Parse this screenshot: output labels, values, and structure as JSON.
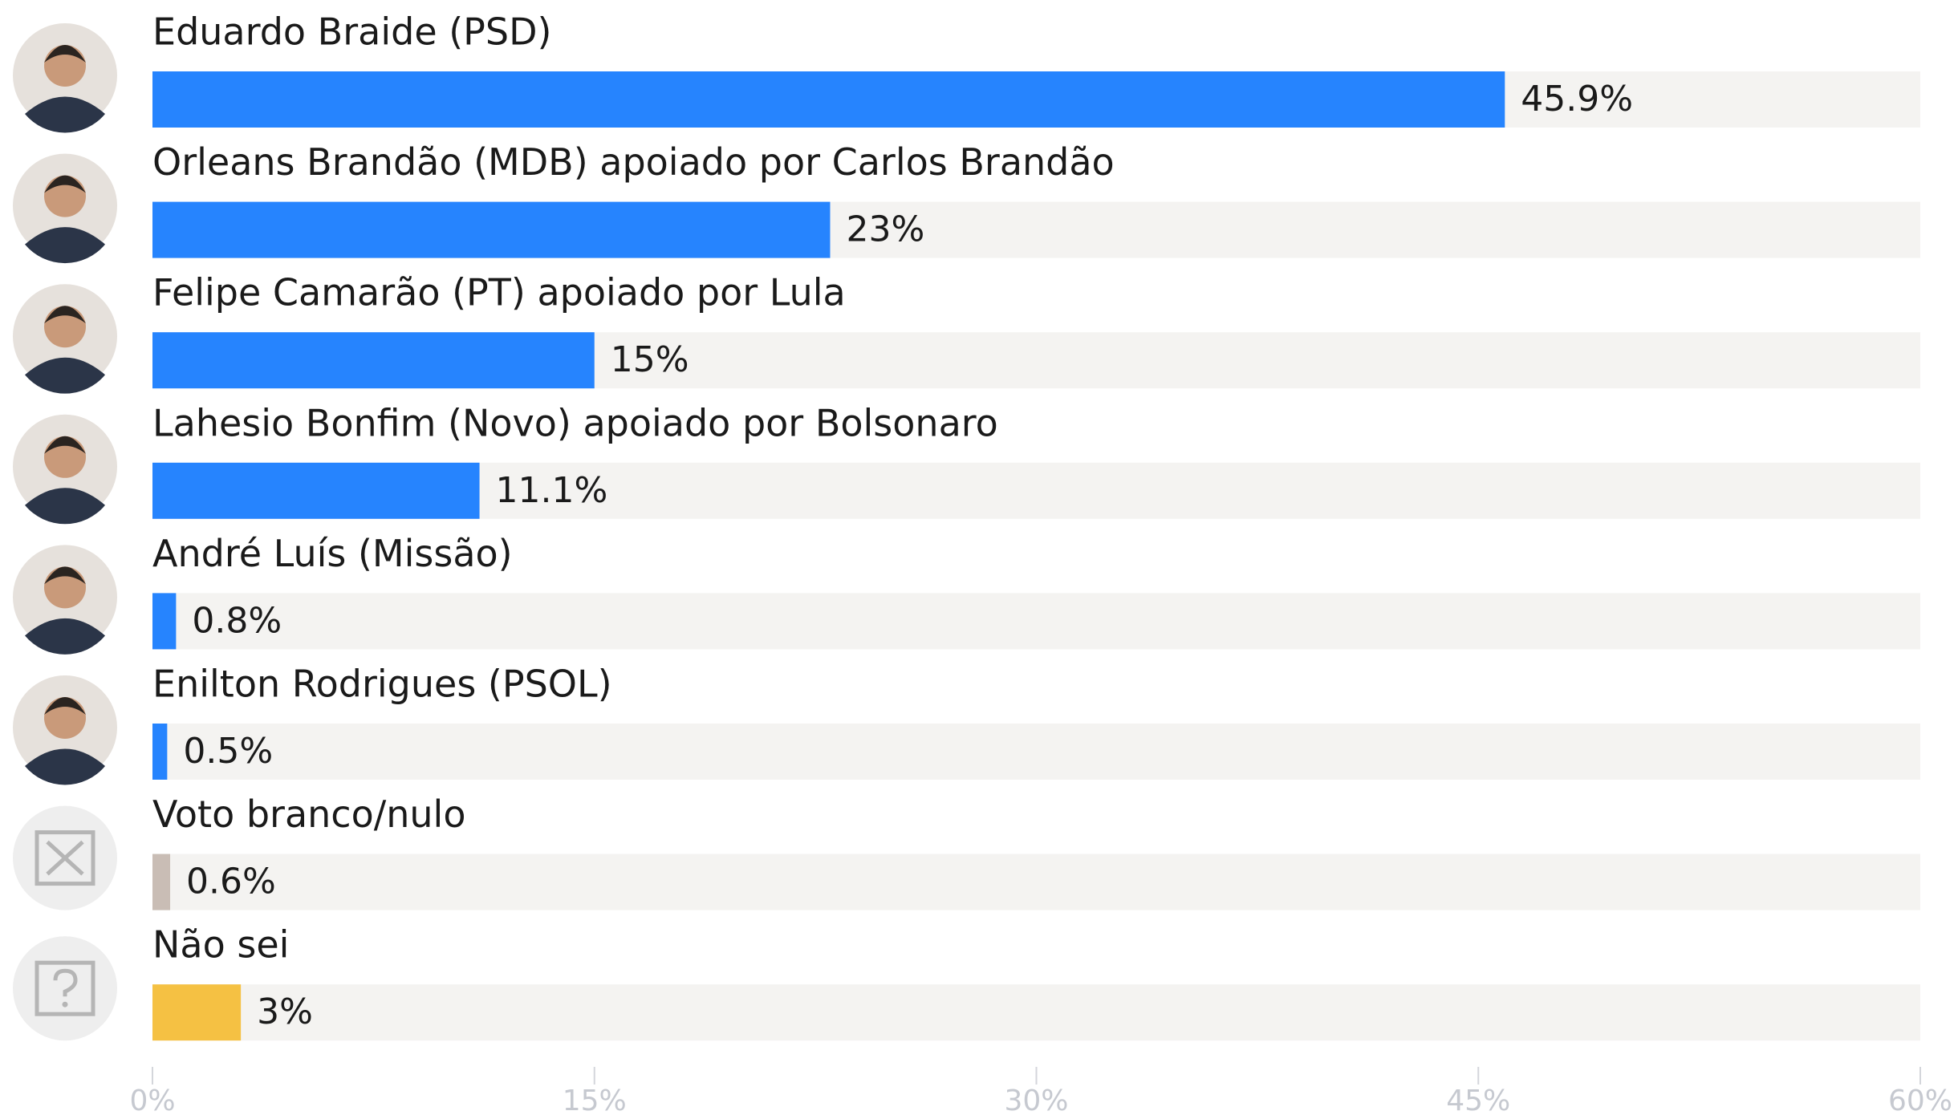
{
  "chart_data": {
    "type": "hbar",
    "categories": [
      "Eduardo Braide (PSD)",
      "Orleans Brandão (MDB) apoiado por Carlos Brandão",
      "Felipe Camarão (PT) apoiado por Lula",
      "Lahesio Bonfim (Novo) apoiado por Bolsonaro",
      "André Luís (Missão)",
      "Enilton Rodrigues (PSOL)",
      "Voto branco/nulo",
      "Não sei"
    ],
    "values": [
      45.9,
      23,
      15,
      11.1,
      0.8,
      0.5,
      0.6,
      3
    ],
    "value_labels": [
      "45.9%",
      "23%",
      "15%",
      "11.1%",
      "0.8%",
      "0.5%",
      "0.6%",
      "3%"
    ],
    "colors": [
      "#2684fe",
      "#2684fe",
      "#2684fe",
      "#2684fe",
      "#2684fe",
      "#2684fe",
      "#c9bdb5",
      "#f5c143"
    ],
    "xlim": [
      0,
      60
    ],
    "xticks": [
      {
        "value": 0,
        "label": "0%"
      },
      {
        "value": 15,
        "label": "15%"
      },
      {
        "value": 30,
        "label": "30%"
      },
      {
        "value": 45,
        "label": "45%"
      },
      {
        "value": 60,
        "label": "60%"
      }
    ]
  }
}
